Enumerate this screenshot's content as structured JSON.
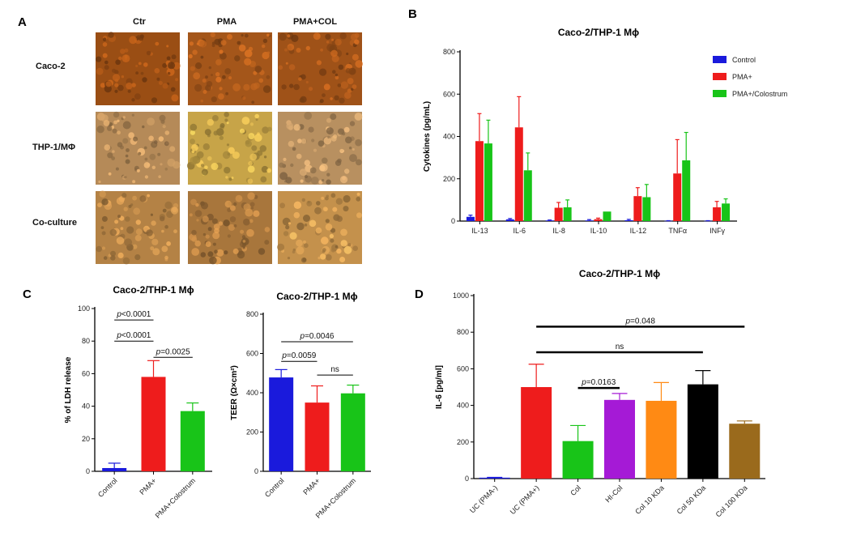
{
  "panels": {
    "A": "A",
    "B": "B",
    "C": "C",
    "D": "D"
  },
  "micrographs": {
    "columns": [
      "Ctr",
      "PMA",
      "PMA+COL"
    ],
    "rows": [
      "Caco-2",
      "THP-1/MΦ",
      "Co-culture"
    ],
    "tones": [
      [
        "#9a4e14",
        "#a4561a",
        "#9f5218"
      ],
      [
        "#b58a58",
        "#c7a448",
        "#b89060"
      ],
      [
        "#b48245",
        "#a8763c",
        "#c4914c"
      ]
    ]
  },
  "colors": {
    "control": "#1a1adc",
    "pma": "#ee1c1c",
    "colostrum": "#18c418",
    "purple": "#a51ad6",
    "orange": "#ff8a14",
    "black": "#000000",
    "brown": "#9a6a1c"
  },
  "chart_data": [
    {
      "id": "B",
      "type": "bar",
      "title": "Caco-2/THP-1 Mϕ",
      "ylabel": "Cytokines (pg/mL)",
      "xlabel": "",
      "ylim": [
        0,
        800
      ],
      "yticks": [
        0,
        200,
        400,
        600,
        800
      ],
      "categories": [
        "IL-13",
        "IL-6",
        "IL-8",
        "IL-10",
        "IL-12",
        "TNFα",
        "INFγ"
      ],
      "series": [
        {
          "name": "Control",
          "color": "#1a1adc",
          "values": [
            20,
            8,
            3,
            3,
            4,
            1,
            1
          ],
          "errors": [
            8,
            4,
            2,
            4,
            4,
            1,
            1
          ]
        },
        {
          "name": "PMA+",
          "color": "#ee1c1c",
          "values": [
            378,
            443,
            63,
            9,
            118,
            225,
            65
          ],
          "errors": [
            130,
            145,
            25,
            5,
            40,
            160,
            28
          ]
        },
        {
          "name": "PMA+/Colostrum",
          "color": "#18c418",
          "values": [
            367,
            240,
            65,
            45,
            113,
            287,
            83
          ],
          "errors": [
            110,
            82,
            35,
            0,
            60,
            132,
            22
          ]
        }
      ],
      "legend": "top-right",
      "grid": false
    },
    {
      "id": "C1",
      "type": "bar",
      "title": "Caco-2/THP-1 Mϕ",
      "ylabel": "% of LDH release",
      "xlabel": "",
      "ylim": [
        0,
        100
      ],
      "yticks": [
        0,
        20,
        40,
        60,
        80,
        100
      ],
      "categories": [
        "Control",
        "PMA+",
        "PMA+Colostrum"
      ],
      "values": [
        2,
        58,
        37
      ],
      "errors": [
        3,
        10,
        5
      ],
      "colors": [
        "#1a1adc",
        "#ee1c1c",
        "#18c418"
      ],
      "annotations": [
        {
          "p_italic": "p",
          "text": "<0.0001",
          "from": 0,
          "to": 1,
          "y": 93
        },
        {
          "p_italic": "p",
          "text": "<0.0001",
          "from": 0,
          "to": 1,
          "y": 80
        },
        {
          "p_italic": "p",
          "text": "=0.0025",
          "from": 1,
          "to": 2,
          "y": 70
        }
      ],
      "grid": false
    },
    {
      "id": "C2",
      "type": "bar",
      "title": "Caco-2/THP-1 Mϕ",
      "ylabel": "TEER (Ω×cm²)",
      "xlabel": "",
      "ylim": [
        0,
        800
      ],
      "yticks": [
        0,
        200,
        400,
        600,
        800
      ],
      "categories": [
        "Control",
        "PMA+",
        "PMA+Colostrum"
      ],
      "values": [
        478,
        350,
        397
      ],
      "errors": [
        40,
        85,
        42
      ],
      "colors": [
        "#1a1adc",
        "#ee1c1c",
        "#18c418"
      ],
      "annotations": [
        {
          "p_italic": "p",
          "text": "=0.0046",
          "from": 0,
          "to": 2,
          "y": 660
        },
        {
          "p_italic": "p",
          "text": "=0.0059",
          "from": 0,
          "to": 1,
          "y": 560
        },
        {
          "p_italic": "",
          "text": "ns",
          "from": 1,
          "to": 2,
          "y": 490
        }
      ],
      "grid": false
    },
    {
      "id": "D",
      "type": "bar",
      "title": "Caco-2/THP-1 Mϕ",
      "ylabel": "IL-6 [pg/ml]",
      "xlabel": "",
      "ylim": [
        0,
        1000
      ],
      "yticks": [
        0,
        200,
        400,
        600,
        800,
        1000
      ],
      "categories": [
        "UC (PMA-)",
        "UC (PMA+)",
        "Col",
        "HI-Col",
        "Col 10 KDa",
        "Col 50 KDa",
        "Col 100 KDa"
      ],
      "values": [
        5,
        500,
        205,
        430,
        425,
        515,
        300
      ],
      "errors": [
        2,
        125,
        85,
        35,
        100,
        75,
        15
      ],
      "colors": [
        "#1a1adc",
        "#ee1c1c",
        "#18c418",
        "#a51ad6",
        "#ff8a14",
        "#000000",
        "#9a6a1c"
      ],
      "annotations": [
        {
          "p_italic": "p",
          "text": "=0.048",
          "from": 1,
          "to": 6,
          "y": 830
        },
        {
          "p_italic": "",
          "text": "ns",
          "from": 1,
          "to": 5,
          "y": 690
        },
        {
          "p_italic": "p",
          "text": "=0.0163",
          "from": 2,
          "to": 3,
          "y": 495
        }
      ],
      "grid": false
    }
  ]
}
